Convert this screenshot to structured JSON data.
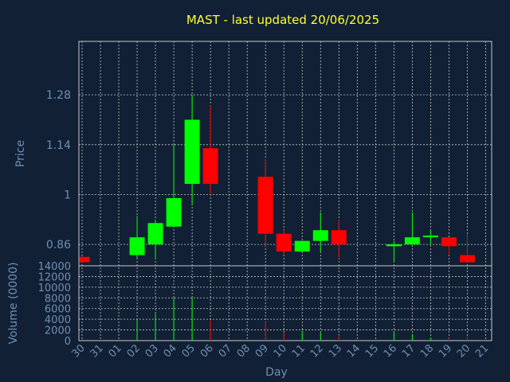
{
  "chart_data": {
    "type": "candlestick",
    "title": "MAST - last updated 20/06/2025",
    "xlabel": "Day",
    "price_axis": {
      "ylabel": "Price",
      "ylim": [
        0.8,
        1.43
      ],
      "ticks": [
        "0.86",
        "1",
        "1.14",
        "1.28"
      ],
      "tick_values": [
        0.86,
        1.0,
        1.14,
        1.28
      ]
    },
    "volume_axis": {
      "ylabel": "Volume (0000)",
      "ylim": [
        0,
        14000
      ],
      "ticks": [
        "0",
        "2000",
        "4000",
        "6000",
        "8000",
        "10000",
        "12000",
        "14000"
      ],
      "tick_values": [
        0,
        2000,
        4000,
        6000,
        8000,
        10000,
        12000,
        14000
      ]
    },
    "categories": [
      "30",
      "31",
      "01",
      "02",
      "03",
      "04",
      "05",
      "06",
      "07",
      "08",
      "09",
      "10",
      "11",
      "12",
      "13",
      "14",
      "15",
      "16",
      "17",
      "18",
      "19",
      "20",
      "21"
    ],
    "grid": true,
    "colors": {
      "background": "#112034",
      "up": "#00ff00",
      "down": "#ff0000",
      "grid": "#c8c8c8",
      "title": "#ffff33",
      "axis": "#6f8fb6"
    },
    "candles": [
      {
        "day": "30",
        "open": 0.825,
        "close": 0.81,
        "high": 0.825,
        "low": 0.81,
        "volume": 0
      },
      {
        "day": "02",
        "open": 0.83,
        "close": 0.88,
        "high": 0.94,
        "low": 0.82,
        "volume": 4000
      },
      {
        "day": "03",
        "open": 0.86,
        "close": 0.92,
        "high": 0.93,
        "low": 0.82,
        "volume": 5000
      },
      {
        "day": "04",
        "open": 0.91,
        "close": 0.99,
        "high": 1.14,
        "low": 0.91,
        "volume": 8000
      },
      {
        "day": "05",
        "open": 1.03,
        "close": 1.21,
        "high": 1.28,
        "low": 0.97,
        "volume": 8000
      },
      {
        "day": "06",
        "open": 1.13,
        "close": 1.03,
        "high": 1.25,
        "low": 1.0,
        "volume": 3800
      },
      {
        "day": "09",
        "open": 1.05,
        "close": 0.89,
        "high": 1.1,
        "low": 0.85,
        "volume": 3500
      },
      {
        "day": "10",
        "open": 0.89,
        "close": 0.84,
        "high": 0.9,
        "low": 0.83,
        "volume": 1500
      },
      {
        "day": "11",
        "open": 0.84,
        "close": 0.87,
        "high": 0.87,
        "low": 0.84,
        "volume": 1800
      },
      {
        "day": "12",
        "open": 0.87,
        "close": 0.9,
        "high": 0.95,
        "low": 0.84,
        "volume": 1500
      },
      {
        "day": "13",
        "open": 0.9,
        "close": 0.86,
        "high": 0.93,
        "low": 0.82,
        "volume": 1000
      },
      {
        "day": "16",
        "open": 0.855,
        "close": 0.86,
        "high": 0.87,
        "low": 0.81,
        "volume": 1500
      },
      {
        "day": "17",
        "open": 0.86,
        "close": 0.88,
        "high": 0.95,
        "low": 0.86,
        "volume": 1200
      },
      {
        "day": "18",
        "open": 0.88,
        "close": 0.885,
        "high": 0.9,
        "low": 0.86,
        "volume": 600
      },
      {
        "day": "19",
        "open": 0.88,
        "close": 0.855,
        "high": 0.88,
        "low": 0.83,
        "volume": 500
      },
      {
        "day": "20",
        "open": 0.83,
        "close": 0.81,
        "high": 0.89,
        "low": 0.81,
        "volume": 800
      }
    ]
  }
}
